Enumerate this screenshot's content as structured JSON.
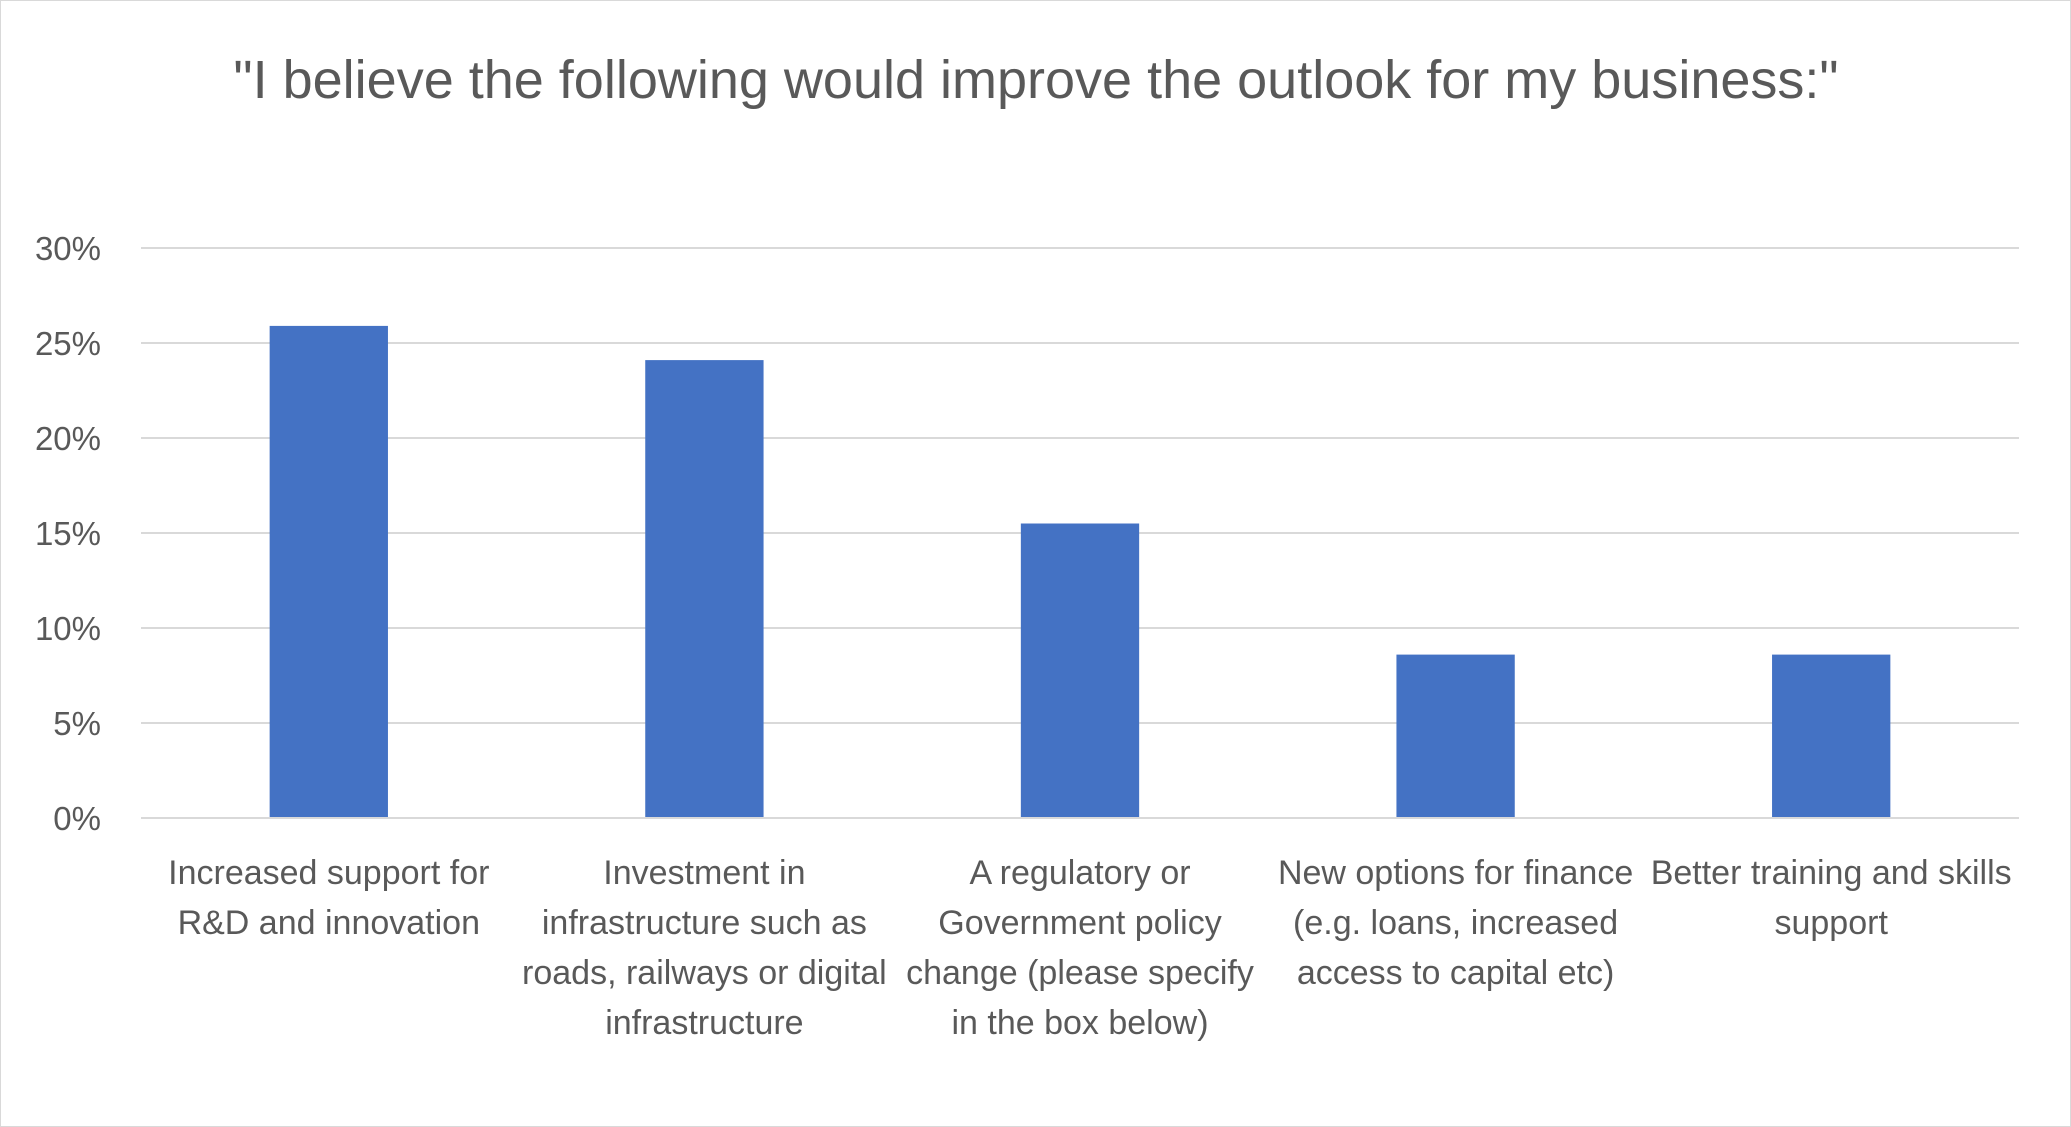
{
  "chart_data": {
    "type": "bar",
    "title": "\"I believe the following would improve the outlook for my business:\"",
    "xlabel": "",
    "ylabel": "",
    "categories": [
      "Increased support for R&D and innovation",
      "Investment in infrastructure such as roads, railways or digital infrastructure",
      "A regulatory or Government policy change (please specify in the box below)",
      "New options for finance (e.g. loans, increased access to capital etc)",
      "Better training and skills support"
    ],
    "values": [
      0.259,
      0.241,
      0.155,
      0.086,
      0.086
    ],
    "ylim": [
      0,
      0.3
    ],
    "yticks": [
      0,
      0.05,
      0.1,
      0.15,
      0.2,
      0.25,
      0.3
    ],
    "ytick_labels": [
      "0%",
      "5%",
      "10%",
      "15%",
      "20%",
      "25%",
      "30%"
    ],
    "grid": true,
    "legend": "none",
    "bar_color": "#4472C4",
    "gridline_color": "#d9d9d9",
    "text_color": "#595959"
  }
}
